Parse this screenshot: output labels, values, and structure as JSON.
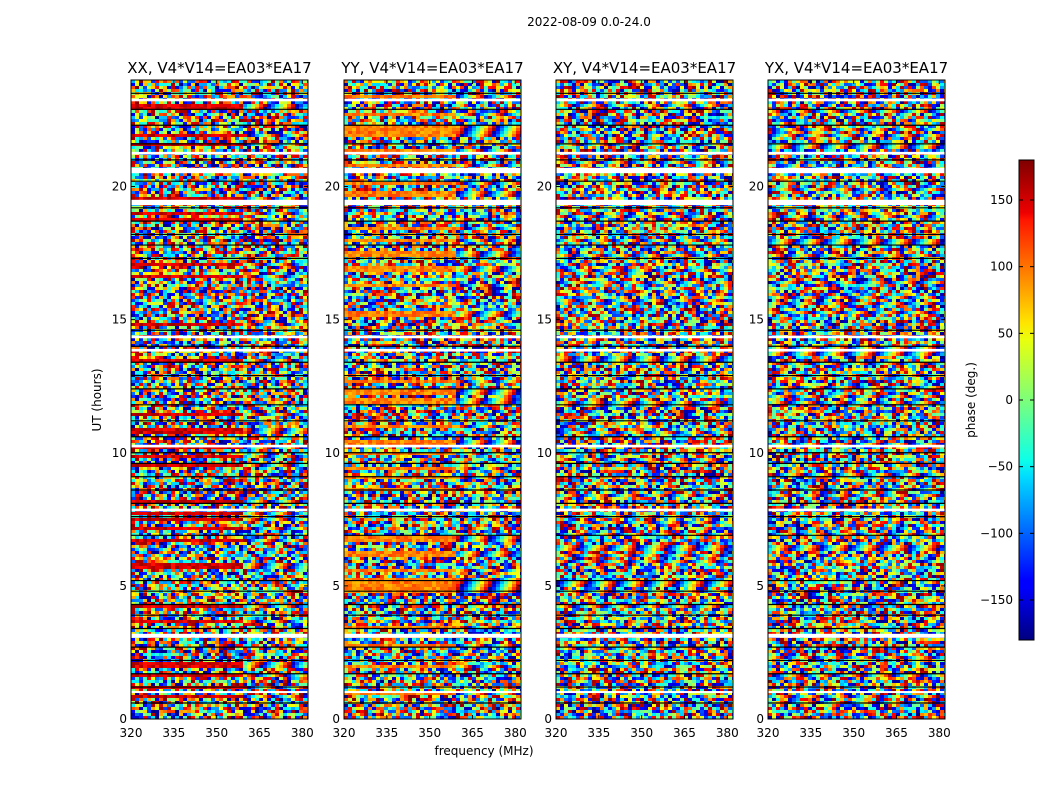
{
  "figure": {
    "suptitle": "2022-08-09 0.0-24.0"
  },
  "chart_data": {
    "type": "heatmap",
    "title": "2022-08-09 0.0-24.0",
    "xlabel": "frequency (MHz)",
    "ylabel": "UT (hours)",
    "xlim": [
      320,
      382
    ],
    "ylim": [
      0,
      24
    ],
    "xticks": [
      320,
      335,
      350,
      365,
      380
    ],
    "xtick_labels": [
      "320",
      "335",
      "350",
      "365",
      "380"
    ],
    "yticks": [
      0,
      5,
      10,
      15,
      20
    ],
    "ytick_labels": [
      "0",
      "5",
      "10",
      "15",
      "20"
    ],
    "panels": [
      {
        "name": "XX",
        "title": "XX, V4*V14=EA03*EA17",
        "phase_bias": 150
      },
      {
        "name": "YY",
        "title": "YY, V4*V14=EA03*EA17",
        "phase_bias": 90
      },
      {
        "name": "XY",
        "title": "XY, V4*V14=EA03*EA17",
        "phase_bias": 0
      },
      {
        "name": "YX",
        "title": "YX, V4*V14=EA03*EA17",
        "phase_bias": 0
      }
    ],
    "colorbar": {
      "label": "phase (deg.)",
      "range": [
        -180,
        180
      ],
      "ticks": [
        150,
        100,
        50,
        0,
        -50,
        -100,
        -150
      ],
      "tick_labels": [
        "150",
        "100",
        "50",
        "0",
        "−50",
        "−100",
        "−150"
      ],
      "colormap": "jet"
    },
    "gaps_ut_hours": [
      [
        23.2,
        23.3
      ],
      [
        21.2,
        21.3
      ],
      [
        20.5,
        20.7
      ],
      [
        19.3,
        19.5
      ],
      [
        14.3,
        14.4
      ],
      [
        13.8,
        13.9
      ],
      [
        10.2,
        10.3
      ],
      [
        7.8,
        7.9
      ],
      [
        3.05,
        3.2
      ],
      [
        1.0,
        1.05
      ]
    ],
    "horizontal_lines_ut_hours": [
      23.5,
      22.9,
      22.3,
      21.6,
      21.0,
      20.2,
      19.2,
      18.7,
      18.2,
      17.8,
      17.3,
      14.6,
      14.0,
      13.4,
      12.9,
      12.4,
      11.8,
      11.2,
      10.6,
      10.0,
      9.6,
      9.1,
      8.6,
      8.1,
      7.6,
      6.9,
      5.2,
      4.8,
      4.3,
      3.9,
      3.4,
      2.7,
      2.2,
      1.7,
      1.2,
      0.6
    ]
  }
}
